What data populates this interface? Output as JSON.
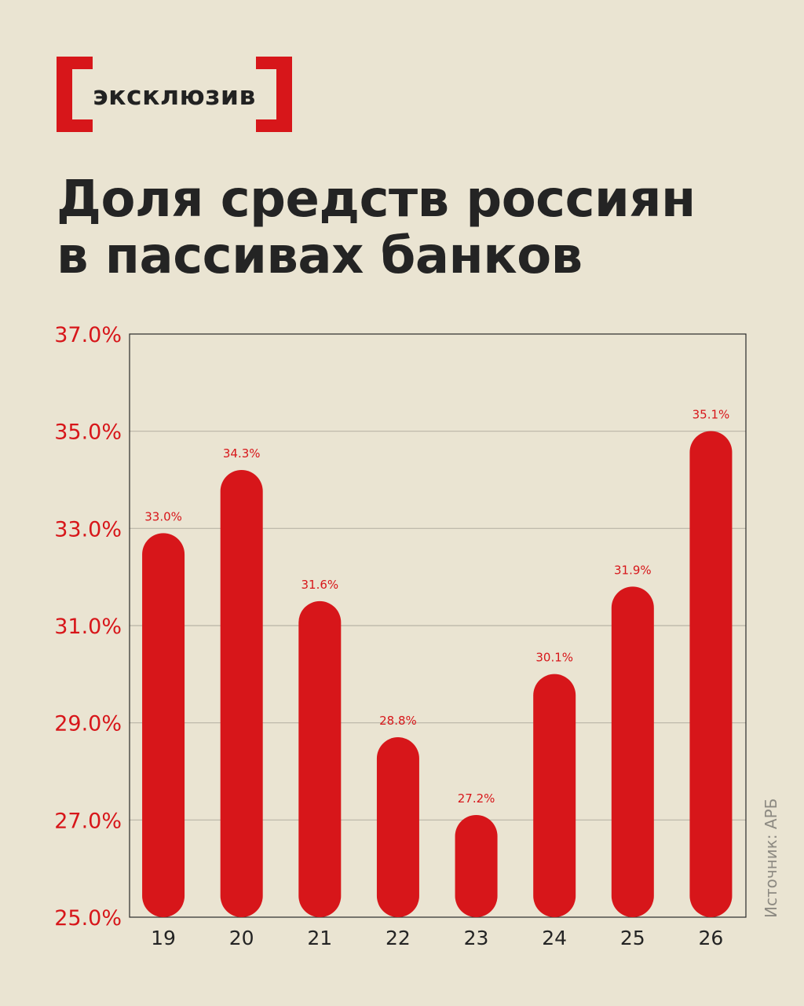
{
  "badge": {
    "label": "эксклюзив"
  },
  "title": {
    "line1": "Доля средств россиян",
    "line2": "в пассивах банков"
  },
  "source": "Источник: АРБ",
  "colors": {
    "bar": "#d7161a",
    "background": "#eae4d2",
    "text": "#242424",
    "grid": "#b9b4a6"
  },
  "chart_data": {
    "type": "bar",
    "title": "Доля средств россиян в пассивах банков",
    "xlabel": "",
    "ylabel": "",
    "categories": [
      "19",
      "20",
      "21",
      "22",
      "23",
      "24",
      "25",
      "26"
    ],
    "values": [
      33.0,
      34.3,
      31.6,
      28.8,
      27.2,
      30.1,
      31.9,
      35.1
    ],
    "value_labels": [
      "33.0%",
      "34.3%",
      "31.6%",
      "28.8%",
      "27.2%",
      "30.1%",
      "31.9%",
      "35.1%"
    ],
    "ylim": [
      25,
      37
    ],
    "yticks": [
      25,
      27,
      29,
      31,
      33,
      35,
      37
    ],
    "ytick_labels": [
      "25.0%",
      "27.0%",
      "29.0%",
      "31.0%",
      "33.0%",
      "35.0%",
      "37.0%"
    ],
    "grid": true,
    "legend": "none"
  }
}
